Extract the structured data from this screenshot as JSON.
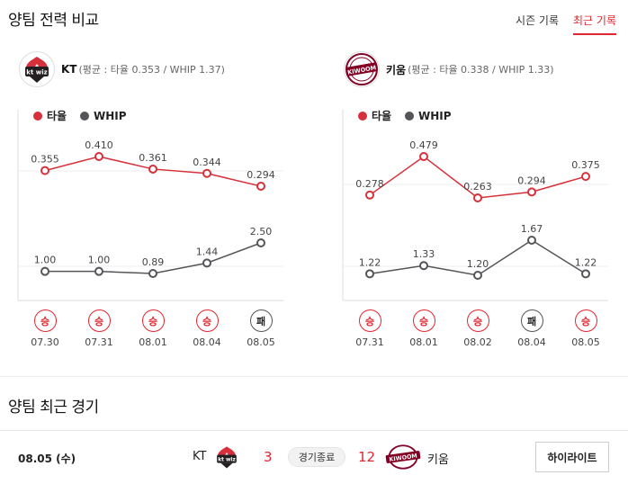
{
  "header": {
    "title": "양팀 전력 비교",
    "tabs": [
      {
        "label": "시즌 기록",
        "active": false
      },
      {
        "label": "최근 기록",
        "active": true
      }
    ]
  },
  "teams": [
    {
      "name": "KT",
      "summary": "(평균 : 타율 0.353 / WHIP 1.37)",
      "logo_text": "kt wiz",
      "logo_color": "#231f20"
    },
    {
      "name": "키움",
      "summary": "(평균 : 타율 0.338 / WHIP 1.33)",
      "logo_text": "KIWOOM",
      "logo_color": "#820024"
    }
  ],
  "colors": {
    "avg": "#d7303a",
    "whip": "#555559",
    "win": "#e0262f",
    "lose": "#555555"
  },
  "chart_data": [
    {
      "type": "line",
      "team": "KT",
      "legend": [
        "타율",
        "WHIP"
      ],
      "categories": [
        "07.30",
        "07.31",
        "08.01",
        "08.04",
        "08.05"
      ],
      "series": [
        {
          "name": "타율",
          "values": [
            0.355,
            0.41,
            0.361,
            0.344,
            0.294
          ],
          "labels": [
            "0.355",
            "0.410",
            "0.361",
            "0.344",
            "0.294"
          ]
        },
        {
          "name": "WHIP",
          "values": [
            1.0,
            1.0,
            0.89,
            1.44,
            2.5
          ],
          "labels": [
            "1.00",
            "1.00",
            "0.89",
            "1.44",
            "2.50"
          ]
        }
      ],
      "results": [
        "승",
        "승",
        "승",
        "승",
        "패"
      ]
    },
    {
      "type": "line",
      "team": "키움",
      "legend": [
        "타율",
        "WHIP"
      ],
      "categories": [
        "07.31",
        "08.01",
        "08.02",
        "08.04",
        "08.05"
      ],
      "series": [
        {
          "name": "타율",
          "values": [
            0.278,
            0.479,
            0.263,
            0.294,
            0.375
          ],
          "labels": [
            "0.278",
            "0.479",
            "0.263",
            "0.294",
            "0.375"
          ]
        },
        {
          "name": "WHIP",
          "values": [
            1.22,
            1.33,
            1.2,
            1.67,
            1.22
          ],
          "labels": [
            "1.22",
            "1.33",
            "1.20",
            "1.67",
            "1.22"
          ]
        }
      ],
      "results": [
        "승",
        "승",
        "승",
        "패",
        "승"
      ]
    }
  ],
  "recent": {
    "title": "양팀 최근 경기",
    "game": {
      "date": "08.05 (수)",
      "home_name": "KT",
      "home_score": "3",
      "status": "경기종료",
      "away_score": "12",
      "away_name": "키움",
      "highlight_label": "하이라이트"
    }
  }
}
